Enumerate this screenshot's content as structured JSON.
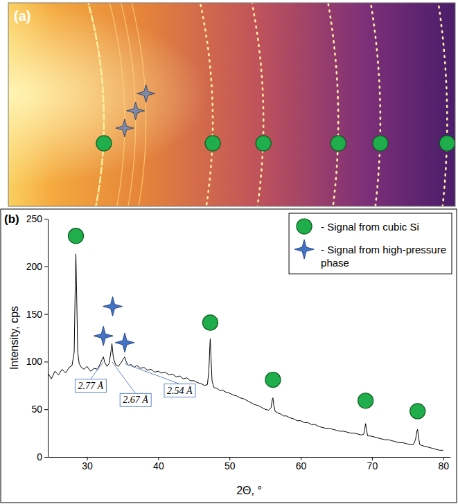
{
  "chart_data": [
    {
      "type": "image",
      "label": "(a)",
      "xlim": [
        11.8,
        89.4
      ],
      "tick_labels": false,
      "series": [
        {
          "marker": "circle",
          "color": "#1fae4b",
          "x": [
            28.4,
            47.3,
            56.1,
            69.1,
            76.4,
            88.0
          ]
        },
        {
          "marker": "star",
          "color": "#7f8aa6",
          "x": [
            32.0,
            33.9,
            35.7
          ]
        }
      ]
    },
    {
      "type": "line",
      "label": "(b)",
      "xlabel": "2Θ, °",
      "ylabel": "Intensity, cps",
      "xlim": [
        24.5,
        81
      ],
      "ylim": [
        0,
        250
      ],
      "xticks": [
        30,
        40,
        50,
        60,
        70,
        80
      ],
      "yticks": [
        0,
        50,
        100,
        150,
        200,
        250
      ],
      "legend": "upper right",
      "series": [
        {
          "type": "line",
          "color": "#000000",
          "x": [
            24.5,
            25.0,
            25.5,
            26.0,
            26.5,
            27.0,
            27.5,
            27.9,
            28.2,
            28.35,
            28.44,
            28.55,
            28.7,
            28.9,
            29.2,
            29.6,
            30.0,
            30.5,
            31.0,
            31.5,
            31.8,
            32.1,
            32.3,
            32.5,
            32.8,
            33.1,
            33.35,
            33.5,
            33.7,
            34.0,
            34.4,
            34.8,
            35.1,
            35.3,
            35.5,
            35.8,
            36.2,
            36.6,
            37.0,
            37.5,
            38.0,
            38.5,
            39.0,
            39.5,
            40.0,
            40.5,
            41.0,
            41.5,
            42.0,
            42.5,
            43.0,
            43.5,
            44.0,
            44.5,
            45.0,
            45.5,
            46.0,
            46.5,
            46.9,
            47.1,
            47.25,
            47.3,
            47.4,
            47.55,
            47.8,
            48.2,
            48.6,
            49.0,
            49.5,
            50.0,
            50.5,
            51.0,
            51.5,
            52.0,
            52.5,
            53.0,
            53.5,
            54.0,
            54.5,
            55.0,
            55.5,
            55.85,
            56.0,
            56.1,
            56.2,
            56.4,
            56.8,
            57.2,
            57.6,
            58.0,
            58.5,
            59.0,
            59.5,
            60.0,
            60.5,
            61.0,
            61.5,
            62.0,
            62.5,
            63.0,
            63.5,
            64.0,
            64.5,
            65.0,
            65.5,
            66.0,
            66.5,
            67.0,
            67.5,
            68.0,
            68.5,
            68.85,
            69.0,
            69.1,
            69.2,
            69.4,
            69.8,
            70.3,
            70.8,
            71.3,
            71.8,
            72.3,
            72.8,
            73.3,
            73.8,
            74.3,
            74.8,
            75.3,
            75.8,
            76.1,
            76.3,
            76.4,
            76.5,
            76.7,
            77.0,
            77.5,
            78.0,
            78.5,
            79.0,
            79.5,
            80.0
          ],
          "values": [
            88,
            82,
            90,
            86,
            92,
            88,
            94,
            96,
            110,
            180,
            213,
            170,
            110,
            98,
            94,
            92,
            95,
            90,
            93,
            92,
            97,
            102,
            105,
            99,
            95,
            98,
            110,
            119,
            104,
            97,
            95,
            99,
            103,
            105,
            100,
            96,
            97,
            94,
            96,
            93,
            94,
            91,
            92,
            89,
            90,
            88,
            89,
            86,
            87,
            84,
            85,
            82,
            83,
            80,
            80,
            78,
            77,
            75,
            76,
            90,
            118,
            124,
            105,
            80,
            73,
            72,
            70,
            70,
            68,
            67,
            65,
            64,
            62,
            61,
            59,
            57,
            55,
            54,
            52,
            50,
            49,
            52,
            60,
            62,
            55,
            48,
            46,
            45,
            43,
            43,
            41,
            40,
            38,
            38,
            36,
            36,
            34,
            34,
            32,
            31,
            30,
            30,
            29,
            28,
            27,
            27,
            26,
            25,
            25,
            24,
            23,
            24,
            30,
            35,
            29,
            22,
            22,
            21,
            20,
            19,
            18,
            18,
            17,
            16,
            15,
            15,
            14,
            13,
            13,
            18,
            27,
            29,
            22,
            13,
            12,
            11,
            10,
            9,
            8,
            7,
            7
          ]
        },
        {
          "name": "- Signal from cubic Si",
          "type": "scatter",
          "marker": "circle",
          "color": "#1fae4b",
          "x": [
            28.44,
            47.3,
            56.1,
            69.1,
            76.4
          ],
          "values": [
            232,
            141,
            81,
            59,
            48
          ]
        },
        {
          "name": "- Signal from high-pressure phase",
          "type": "scatter",
          "marker": "star",
          "color": "#4472c4",
          "x": [
            32.3,
            33.6,
            35.3
          ],
          "values": [
            127,
            158,
            120
          ]
        }
      ],
      "annotations": [
        {
          "text": "2.77 Å",
          "x": 32.3,
          "y": 100,
          "text_x": 30.5,
          "text_y": 75
        },
        {
          "text": "2.67 Å",
          "x": 33.5,
          "y": 100,
          "text_x": 36.8,
          "text_y": 60
        },
        {
          "text": "2.54 Å",
          "x": 35.3,
          "y": 98,
          "text_x": 43.0,
          "text_y": 70
        }
      ]
    }
  ]
}
